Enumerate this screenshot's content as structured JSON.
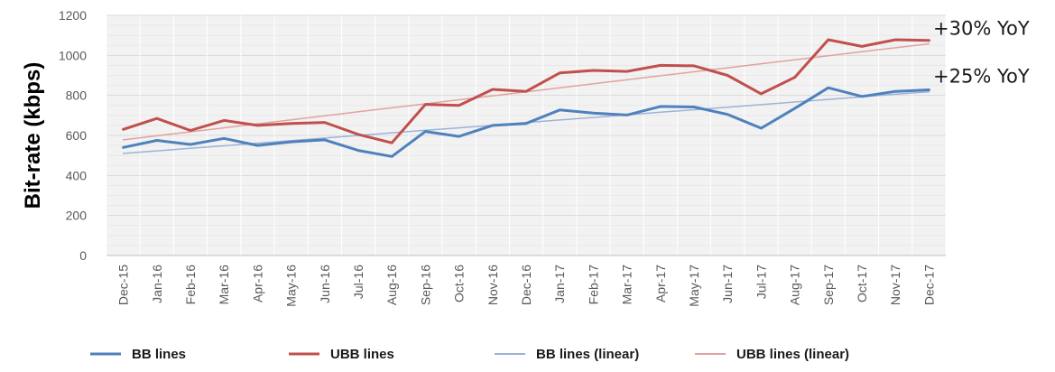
{
  "chart_data": {
    "type": "line",
    "ylabel": "Bit-rate (kbps)",
    "ylim": [
      0,
      1200
    ],
    "yticks": [
      "0",
      "200",
      "400",
      "600",
      "800",
      "1000",
      "1200"
    ],
    "categories": [
      "Dec-15",
      "Jan-16",
      "Feb-16",
      "Mar-16",
      "Apr-16",
      "May-16",
      "Jun-16",
      "Jul-16",
      "Aug-16",
      "Sep-16",
      "Oct-16",
      "Nov-16",
      "Dec-16",
      "Jan-17",
      "Feb-17",
      "Mar-17",
      "Apr-17",
      "May-17",
      "Jun-17",
      "Jul-17",
      "Aug-17",
      "Sep-17",
      "Oct-17",
      "Nov-17",
      "Dec-17"
    ],
    "series": [
      {
        "name": "BB lines",
        "color": "#4f81bd",
        "values": [
          540,
          575,
          555,
          585,
          550,
          568,
          578,
          525,
          495,
          620,
          595,
          650,
          660,
          727,
          712,
          702,
          745,
          742,
          705,
          636,
          735,
          838,
          795,
          820,
          828
        ]
      },
      {
        "name": "UBB lines",
        "color": "#c0504d",
        "values": [
          630,
          685,
          625,
          675,
          650,
          660,
          665,
          605,
          563,
          755,
          750,
          830,
          820,
          912,
          925,
          920,
          950,
          948,
          900,
          808,
          890,
          1078,
          1045,
          1078,
          1075
        ]
      },
      {
        "name": "BB lines (linear)",
        "color": "#9db3d6",
        "trend": true,
        "values": [
          510,
          523,
          536,
          548,
          561,
          574,
          587,
          600,
          613,
          626,
          638,
          651,
          664,
          677,
          690,
          703,
          716,
          728,
          741,
          754,
          767,
          780,
          793,
          806,
          818
        ]
      },
      {
        "name": "UBB lines (linear)",
        "color": "#e0a3a1",
        "trend": true,
        "values": [
          578,
          598,
          618,
          638,
          658,
          678,
          698,
          718,
          738,
          758,
          778,
          798,
          818,
          838,
          858,
          878,
          898,
          918,
          938,
          958,
          978,
          998,
          1018,
          1038,
          1058
        ]
      }
    ],
    "annotations": [
      {
        "text": "+30% YoY",
        "series": "UBB lines (linear)"
      },
      {
        "text": "+25% YoY",
        "series": "BB lines (linear)"
      }
    ],
    "grid": true,
    "legend_position": "bottom"
  }
}
